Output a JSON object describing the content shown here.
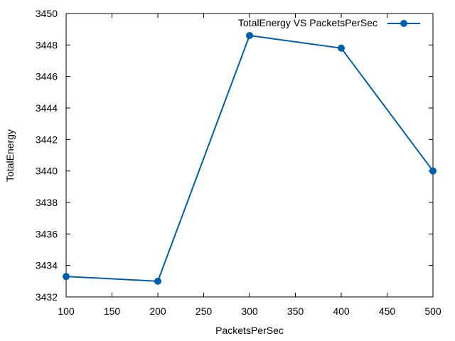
{
  "chart_data": {
    "type": "line",
    "xlabel": "PacketsPerSec",
    "ylabel": "TotalEnergy",
    "xlim": [
      100,
      500
    ],
    "ylim": [
      3432,
      3450
    ],
    "xticks": [
      100,
      150,
      200,
      250,
      300,
      350,
      400,
      450,
      500
    ],
    "yticks": [
      3432,
      3434,
      3436,
      3438,
      3440,
      3442,
      3444,
      3446,
      3448,
      3450
    ],
    "grid": false,
    "legend_position": "top-right",
    "series": [
      {
        "name": "TotalEnergy VS PacketsPerSec",
        "color": "#005fad",
        "marker": "circle",
        "x": [
          100,
          200,
          300,
          400,
          500
        ],
        "y": [
          3433.3,
          3433.0,
          3448.6,
          3447.8,
          3440.0
        ]
      }
    ]
  }
}
